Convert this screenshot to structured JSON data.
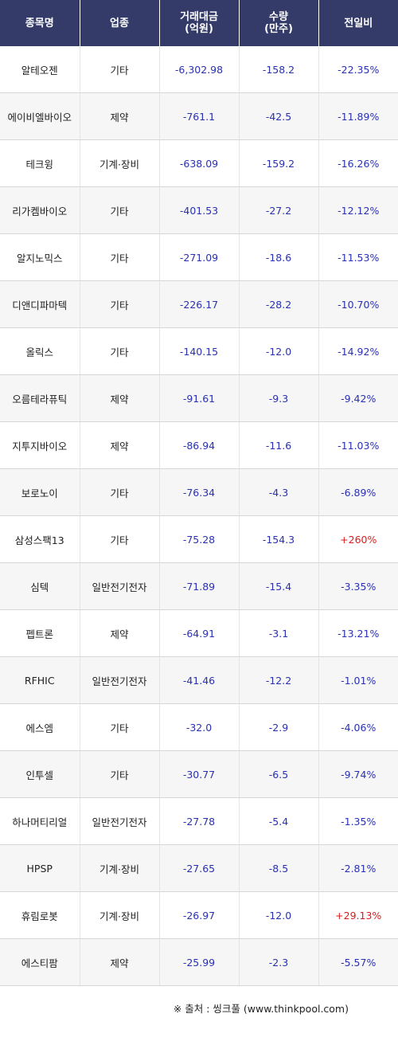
{
  "header": {
    "name": "종목명",
    "sector": "업종",
    "amount_line1": "거래대금",
    "amount_line2": "(억원)",
    "volume_line1": "수량",
    "volume_line2": "(만주)",
    "change": "전일비"
  },
  "rows": [
    {
      "name": "알테오젠",
      "sector": "기타",
      "amount": "-6,302.98",
      "volume": "-158.2",
      "change": "-22.35%",
      "dir": "down"
    },
    {
      "name": "에이비엘바이오",
      "sector": "제약",
      "amount": "-761.1",
      "volume": "-42.5",
      "change": "-11.89%",
      "dir": "down"
    },
    {
      "name": "테크윙",
      "sector": "기계·장비",
      "amount": "-638.09",
      "volume": "-159.2",
      "change": "-16.26%",
      "dir": "down"
    },
    {
      "name": "리가켐바이오",
      "sector": "기타",
      "amount": "-401.53",
      "volume": "-27.2",
      "change": "-12.12%",
      "dir": "down"
    },
    {
      "name": "알지노믹스",
      "sector": "기타",
      "amount": "-271.09",
      "volume": "-18.6",
      "change": "-11.53%",
      "dir": "down"
    },
    {
      "name": "디앤디파마텍",
      "sector": "기타",
      "amount": "-226.17",
      "volume": "-28.2",
      "change": "-10.70%",
      "dir": "down"
    },
    {
      "name": "올릭스",
      "sector": "기타",
      "amount": "-140.15",
      "volume": "-12.0",
      "change": "-14.92%",
      "dir": "down"
    },
    {
      "name": "오름테라퓨틱",
      "sector": "제약",
      "amount": "-91.61",
      "volume": "-9.3",
      "change": "-9.42%",
      "dir": "down"
    },
    {
      "name": "지투지바이오",
      "sector": "제약",
      "amount": "-86.94",
      "volume": "-11.6",
      "change": "-11.03%",
      "dir": "down"
    },
    {
      "name": "보로노이",
      "sector": "기타",
      "amount": "-76.34",
      "volume": "-4.3",
      "change": "-6.89%",
      "dir": "down"
    },
    {
      "name": "삼성스팩13",
      "sector": "기타",
      "amount": "-75.28",
      "volume": "-154.3",
      "change": "+260%",
      "dir": "up"
    },
    {
      "name": "심텍",
      "sector": "일반전기전자",
      "amount": "-71.89",
      "volume": "-15.4",
      "change": "-3.35%",
      "dir": "down"
    },
    {
      "name": "펩트론",
      "sector": "제약",
      "amount": "-64.91",
      "volume": "-3.1",
      "change": "-13.21%",
      "dir": "down"
    },
    {
      "name": "RFHIC",
      "sector": "일반전기전자",
      "amount": "-41.46",
      "volume": "-12.2",
      "change": "-1.01%",
      "dir": "down"
    },
    {
      "name": "에스엠",
      "sector": "기타",
      "amount": "-32.0",
      "volume": "-2.9",
      "change": "-4.06%",
      "dir": "down"
    },
    {
      "name": "인투셀",
      "sector": "기타",
      "amount": "-30.77",
      "volume": "-6.5",
      "change": "-9.74%",
      "dir": "down"
    },
    {
      "name": "하나머티리얼",
      "sector": "일반전기전자",
      "amount": "-27.78",
      "volume": "-5.4",
      "change": "-1.35%",
      "dir": "down"
    },
    {
      "name": "HPSP",
      "sector": "기계·장비",
      "amount": "-27.65",
      "volume": "-8.5",
      "change": "-2.81%",
      "dir": "down"
    },
    {
      "name": "휴림로봇",
      "sector": "기계·장비",
      "amount": "-26.97",
      "volume": "-12.0",
      "change": "+29.13%",
      "dir": "up"
    },
    {
      "name": "에스티팜",
      "sector": "제약",
      "amount": "-25.99",
      "volume": "-2.3",
      "change": "-5.57%",
      "dir": "down"
    }
  ],
  "footer": {
    "source": "※ 출처 : 씽크풀 (www.thinkpool.com)"
  }
}
